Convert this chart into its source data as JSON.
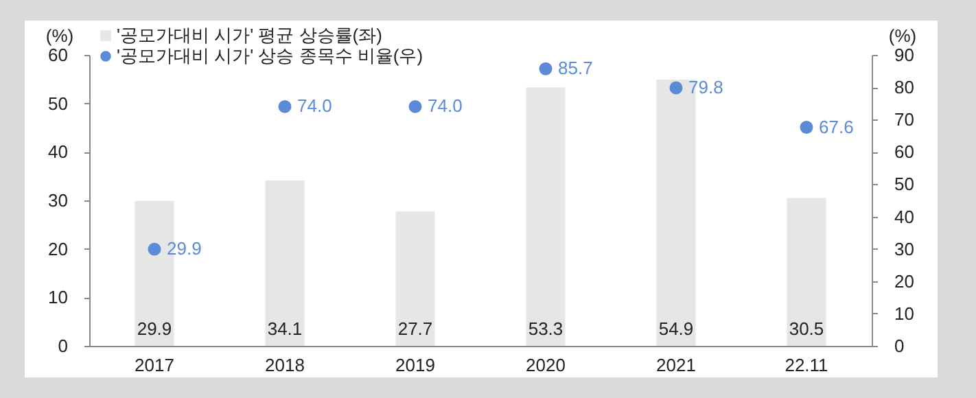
{
  "chart_data": {
    "type": "bar",
    "categories": [
      "2017",
      "2018",
      "2019",
      "2020",
      "2021",
      "22.11"
    ],
    "ylabel": "(%)",
    "y2label": "(%)",
    "ylim": [
      0,
      60
    ],
    "yticks": [
      0,
      10,
      20,
      30,
      40,
      50,
      60
    ],
    "y2lim": [
      0,
      90
    ],
    "y2ticks": [
      0,
      10,
      20,
      30,
      40,
      50,
      60,
      70,
      80,
      90
    ],
    "legend": "top left",
    "grid": false,
    "marker": "circle",
    "series": [
      {
        "name": "'공모가대비 시가' 평균 상승률(좌)",
        "color": "#e6e6e6",
        "values": [
          29.9,
          34.1,
          27.7,
          53.3,
          54.9,
          30.5
        ],
        "value_labels": [
          "29.9",
          "34.1",
          "27.7",
          "53.3",
          "54.9",
          "30.5"
        ]
      },
      {
        "name": "'공모가대비 시가' 상승 종목수 비율(우)",
        "type": "scatter",
        "axis": "y2",
        "color": "#5b8bd6",
        "values": [
          29.9,
          74.0,
          74.0,
          85.7,
          79.8,
          67.6
        ],
        "value_labels": [
          "29.9",
          "74.0",
          "74.0",
          "85.7",
          "79.8",
          "67.6"
        ]
      }
    ]
  }
}
